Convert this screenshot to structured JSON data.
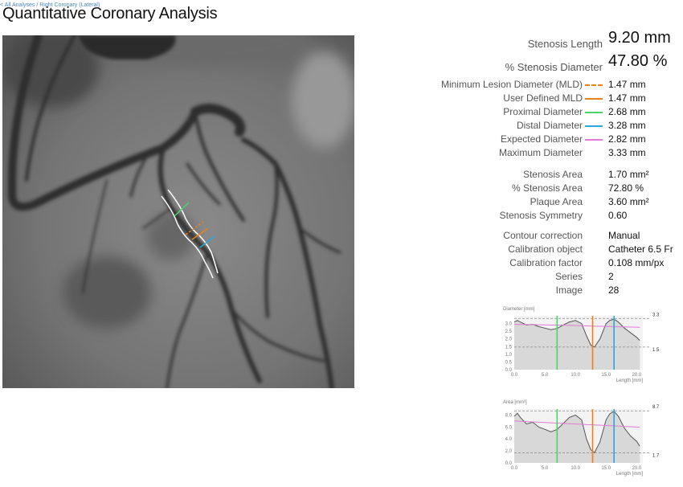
{
  "breadcrumb": [
    "< All Analyses",
    "/ Right Coronary (Lateral)"
  ],
  "title": "Quantitative Coronary Analysis",
  "hero": {
    "stenosis_length": {
      "label": "Stenosis Length",
      "value": "9.20 mm"
    },
    "stenosis_diameter": {
      "label": "% Stenosis Diameter",
      "value": "47.80 %"
    }
  },
  "diameters": [
    {
      "label": "Minimum Lesion Diameter (MLD)",
      "value": "1.47 mm",
      "color": "#e8821e",
      "style": "dashed"
    },
    {
      "label": "User Defined MLD",
      "value": "1.47 mm",
      "color": "#e8821e",
      "style": "solid"
    },
    {
      "label": "Proximal Diameter",
      "value": "2.68 mm",
      "color": "#4cd26a",
      "style": "solid"
    },
    {
      "label": "Distal Diameter",
      "value": "3.28 mm",
      "color": "#29a8e0",
      "style": "solid"
    },
    {
      "label": "Expected Diameter",
      "value": "2.82 mm",
      "color": "#e37ad8",
      "style": "solid"
    },
    {
      "label": "Maximum Diameter",
      "value": "3.33 mm",
      "color": "",
      "style": "none"
    }
  ],
  "areas": [
    {
      "label": "Stenosis Area",
      "value": "1.70 mm²"
    },
    {
      "label": "% Stenosis Area",
      "value": "72.80 %"
    },
    {
      "label": "Plaque Area",
      "value": "3.60 mm²"
    },
    {
      "label": "Stenosis Symmetry",
      "value": "0.60"
    }
  ],
  "calibration": [
    {
      "label": "Contour correction",
      "value": "Manual"
    },
    {
      "label": "Calibration object",
      "value": "Catheter 6.5 Fr"
    },
    {
      "label": "Calibration factor",
      "value": "0.108 mm/px"
    },
    {
      "label": "Series",
      "value": "2"
    },
    {
      "label": "Image",
      "value": "28"
    }
  ],
  "chart_data": [
    {
      "type": "area",
      "ylabel": "Diameter [mm]",
      "xlabel": "Length [mm]",
      "xlim": [
        0,
        21
      ],
      "ylim": [
        0,
        3.5
      ],
      "xticks": [
        "0.0",
        "5.0",
        "10.0",
        "15.0",
        "20.0"
      ],
      "yticks": [
        "0.0",
        "0.5",
        "1.0",
        "1.5",
        "2.0",
        "2.5",
        "3.0"
      ],
      "max_label": "3.3",
      "min_label": "1.5",
      "max_line": 3.33,
      "min_line": 1.47,
      "x": [
        0,
        0.5,
        1,
        2,
        3,
        4,
        5,
        6,
        7,
        8,
        9,
        10,
        11,
        11.8,
        12.5,
        13.1,
        14,
        15,
        15.6,
        16.3,
        17,
        18,
        19,
        20,
        20.5
      ],
      "series": [
        {
          "values": [
            3.1,
            3.2,
            3.1,
            2.9,
            2.95,
            2.8,
            2.7,
            2.6,
            2.68,
            2.9,
            3.1,
            3.2,
            3.0,
            2.2,
            1.6,
            1.47,
            2.0,
            3.0,
            3.2,
            3.28,
            3.1,
            2.7,
            2.4,
            2.1,
            1.9
          ],
          "color": "#555555"
        },
        {
          "values": [
            2.95,
            2.94,
            2.94,
            2.93,
            2.93,
            2.92,
            2.91,
            2.9,
            2.9,
            2.89,
            2.88,
            2.87,
            2.86,
            2.85,
            2.84,
            2.83,
            2.82,
            2.81,
            2.81,
            2.8,
            2.79,
            2.78,
            2.77,
            2.76,
            2.75
          ],
          "color": "#e37ad8"
        }
      ],
      "markers": [
        {
          "x": 7,
          "color": "#4cd26a"
        },
        {
          "x": 12.8,
          "color": "#e8821e"
        },
        {
          "x": 16.3,
          "color": "#29a8e0"
        }
      ]
    },
    {
      "type": "area",
      "ylabel": "Area [mm²]",
      "xlabel": "Length [mm]",
      "xlim": [
        0,
        21
      ],
      "ylim": [
        0,
        9
      ],
      "xticks": [
        "0.0",
        "5.0",
        "10.0",
        "15.0",
        "20.0"
      ],
      "yticks": [
        "0.0",
        "2.0",
        "4.0",
        "6.0",
        "8.0"
      ],
      "max_label": "8.7",
      "min_label": "1.7",
      "max_line": 8.7,
      "min_line": 1.7,
      "x": [
        0,
        0.5,
        1,
        2,
        3,
        4,
        5,
        6,
        7,
        8,
        9,
        10,
        11,
        11.8,
        12.5,
        13.1,
        14,
        15,
        15.6,
        16.3,
        17,
        18,
        19,
        20,
        20.5
      ],
      "series": [
        {
          "values": [
            7.8,
            8.3,
            7.6,
            6.5,
            6.8,
            6.0,
            5.6,
            5.2,
            5.6,
            6.6,
            7.6,
            8.0,
            7.2,
            4.0,
            2.2,
            1.7,
            3.5,
            7.2,
            8.2,
            8.6,
            7.8,
            5.8,
            4.5,
            3.6,
            2.8
          ],
          "color": "#555555"
        },
        {
          "values": [
            7.0,
            6.98,
            6.95,
            6.9,
            6.85,
            6.8,
            6.75,
            6.7,
            6.65,
            6.6,
            6.55,
            6.5,
            6.45,
            6.4,
            6.38,
            6.35,
            6.3,
            6.25,
            6.22,
            6.2,
            6.15,
            6.1,
            6.05,
            6.0,
            5.98
          ],
          "color": "#e37ad8"
        }
      ],
      "markers": [
        {
          "x": 7,
          "color": "#4cd26a"
        },
        {
          "x": 12.8,
          "color": "#e8821e"
        },
        {
          "x": 16.3,
          "color": "#29a8e0"
        }
      ]
    }
  ]
}
